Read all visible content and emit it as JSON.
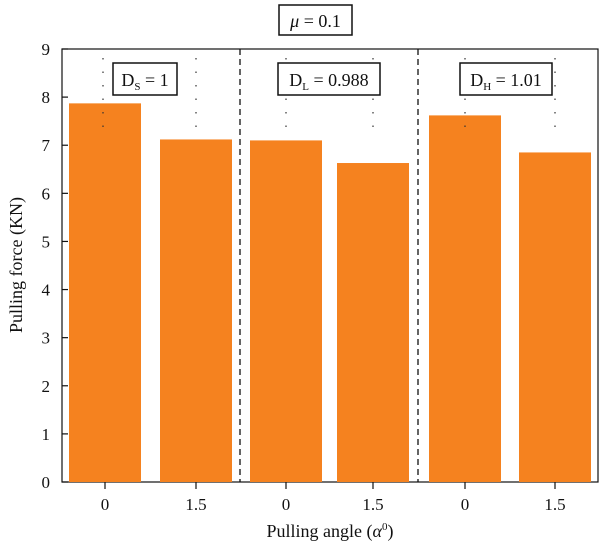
{
  "chart_data": {
    "type": "bar",
    "title": "μ = 0.1",
    "title_parts": {
      "symbol": "μ",
      "rest": " = 0.1"
    },
    "xlabel": "Pulling angle (α⁰)",
    "xlabel_parts": {
      "text": "Pulling angle (",
      "symbol": "α",
      "sup": "0",
      "close": ")"
    },
    "ylabel": "Pulling force (KN)",
    "ylim": [
      0,
      9
    ],
    "yticks": [
      "0",
      "1",
      "2",
      "3",
      "4",
      "5",
      "6",
      "7",
      "8",
      "9"
    ],
    "categories": [
      "0",
      "1.5",
      "0",
      "1.5",
      "0",
      "1.5"
    ],
    "values": [
      7.87,
      7.12,
      7.1,
      6.63,
      7.62,
      6.85
    ],
    "groups": [
      {
        "label": "D",
        "sub": "S",
        "value_text": " = 1"
      },
      {
        "label": "D",
        "sub": "L",
        "value_text": " = 0.988"
      },
      {
        "label": "D",
        "sub": "H",
        "value_text": " = 1.01"
      }
    ],
    "bar_color": "#F5821F",
    "grid": false,
    "group_separator": "dashed vertical lines",
    "legend": "none"
  }
}
